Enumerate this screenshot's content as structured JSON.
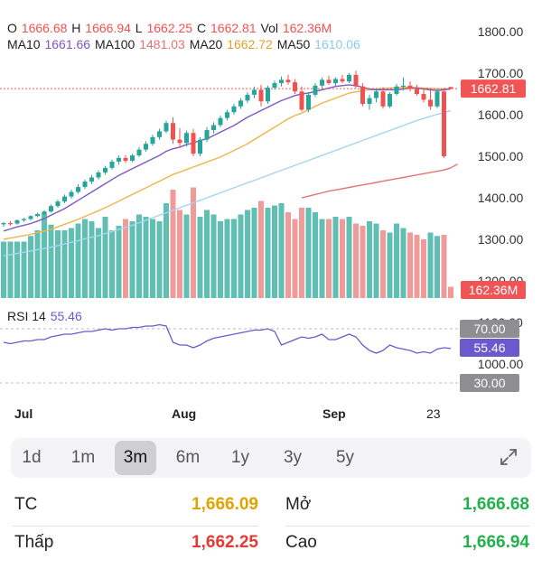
{
  "ohlc": {
    "o_label": "O",
    "o_value": "1666.68",
    "h_label": "H",
    "h_value": "1666.94",
    "l_label": "L",
    "l_value": "1662.25",
    "c_label": "C",
    "c_value": "1662.81",
    "vol_label": "Vol",
    "vol_value": "162.36M"
  },
  "ma": {
    "ma10_label": "MA10",
    "ma10_value": "1661.66",
    "ma100_label": "MA100",
    "ma100_value": "1481.03",
    "ma20_label": "MA20",
    "ma20_value": "1662.72",
    "ma50_label": "MA50",
    "ma50_value": "1610.06"
  },
  "price_axis": [
    "1800.00",
    "1700.00",
    "1600.00",
    "1500.00",
    "1400.00",
    "1300.00",
    "1200.00",
    "1100.00",
    "1000.00"
  ],
  "last_price_badge": "1662.81",
  "volume_badge": "162.36M",
  "rsi": {
    "label": "RSI 14",
    "value": "55.46",
    "upper": "70.00",
    "lower": "30.00"
  },
  "months": [
    "Jul",
    "Aug",
    "Sep",
    "23"
  ],
  "ranges": [
    "1d",
    "1m",
    "3m",
    "6m",
    "1y",
    "3y",
    "5y"
  ],
  "active_range": "3m",
  "stats": {
    "tc_label": "TC",
    "tc_value": "1,666.09",
    "open_label": "Mở",
    "open_value": "1,666.68",
    "low_label": "Thấp",
    "low_value": "1,662.25",
    "high_label": "Cao",
    "high_value": "1,666.94"
  },
  "colors": {
    "up": "#26a69a",
    "down": "#ef5350",
    "volume_up": "#5fbfb2",
    "volume_down": "#f19a9a",
    "ma10": "#7e57c2",
    "ma20": "#f0b44a",
    "ma50": "#a6d5ef",
    "ma100": "#e57373",
    "rsi_line": "#6a5acd",
    "badge_red": "#f05454",
    "badge_grey": "#8e8e93",
    "tc": "#e0a400",
    "open": "#22b14c",
    "low": "#e53935",
    "high": "#22b14c"
  },
  "chart_data": {
    "type": "candlestick",
    "ylim": [
      1000,
      1830
    ],
    "candles": [
      {
        "o": 1336,
        "h": 1342,
        "l": 1330,
        "c": 1339
      },
      {
        "o": 1339,
        "h": 1344,
        "l": 1333,
        "c": 1338
      },
      {
        "o": 1338,
        "h": 1348,
        "l": 1335,
        "c": 1346
      },
      {
        "o": 1346,
        "h": 1352,
        "l": 1342,
        "c": 1349
      },
      {
        "o": 1349,
        "h": 1358,
        "l": 1346,
        "c": 1356
      },
      {
        "o": 1356,
        "h": 1364,
        "l": 1353,
        "c": 1361
      },
      {
        "o": 1361,
        "h": 1370,
        "l": 1356,
        "c": 1367
      },
      {
        "o": 1367,
        "h": 1384,
        "l": 1364,
        "c": 1380
      },
      {
        "o": 1380,
        "h": 1396,
        "l": 1376,
        "c": 1391
      },
      {
        "o": 1391,
        "h": 1408,
        "l": 1387,
        "c": 1403
      },
      {
        "o": 1403,
        "h": 1420,
        "l": 1398,
        "c": 1414
      },
      {
        "o": 1414,
        "h": 1432,
        "l": 1410,
        "c": 1426
      },
      {
        "o": 1426,
        "h": 1444,
        "l": 1421,
        "c": 1439
      },
      {
        "o": 1439,
        "h": 1455,
        "l": 1433,
        "c": 1449
      },
      {
        "o": 1449,
        "h": 1466,
        "l": 1444,
        "c": 1461
      },
      {
        "o": 1461,
        "h": 1477,
        "l": 1456,
        "c": 1472
      },
      {
        "o": 1472,
        "h": 1492,
        "l": 1468,
        "c": 1487
      },
      {
        "o": 1487,
        "h": 1502,
        "l": 1480,
        "c": 1496
      },
      {
        "o": 1496,
        "h": 1503,
        "l": 1484,
        "c": 1489
      },
      {
        "o": 1489,
        "h": 1506,
        "l": 1486,
        "c": 1502
      },
      {
        "o": 1502,
        "h": 1522,
        "l": 1498,
        "c": 1516
      },
      {
        "o": 1516,
        "h": 1536,
        "l": 1511,
        "c": 1530
      },
      {
        "o": 1530,
        "h": 1552,
        "l": 1525,
        "c": 1546
      },
      {
        "o": 1546,
        "h": 1566,
        "l": 1540,
        "c": 1560
      },
      {
        "o": 1560,
        "h": 1586,
        "l": 1556,
        "c": 1580
      },
      {
        "o": 1580,
        "h": 1594,
        "l": 1530,
        "c": 1540
      },
      {
        "o": 1540,
        "h": 1568,
        "l": 1520,
        "c": 1532
      },
      {
        "o": 1532,
        "h": 1562,
        "l": 1524,
        "c": 1556
      },
      {
        "o": 1556,
        "h": 1566,
        "l": 1500,
        "c": 1506
      },
      {
        "o": 1506,
        "h": 1546,
        "l": 1500,
        "c": 1540
      },
      {
        "o": 1540,
        "h": 1570,
        "l": 1534,
        "c": 1563
      },
      {
        "o": 1563,
        "h": 1582,
        "l": 1555,
        "c": 1575
      },
      {
        "o": 1575,
        "h": 1598,
        "l": 1570,
        "c": 1592
      },
      {
        "o": 1592,
        "h": 1612,
        "l": 1586,
        "c": 1606
      },
      {
        "o": 1606,
        "h": 1626,
        "l": 1600,
        "c": 1620
      },
      {
        "o": 1620,
        "h": 1640,
        "l": 1614,
        "c": 1634
      },
      {
        "o": 1634,
        "h": 1654,
        "l": 1628,
        "c": 1648
      },
      {
        "o": 1648,
        "h": 1668,
        "l": 1640,
        "c": 1660
      },
      {
        "o": 1660,
        "h": 1672,
        "l": 1620,
        "c": 1632
      },
      {
        "o": 1632,
        "h": 1670,
        "l": 1626,
        "c": 1665
      },
      {
        "o": 1665,
        "h": 1682,
        "l": 1660,
        "c": 1676
      },
      {
        "o": 1676,
        "h": 1692,
        "l": 1668,
        "c": 1684
      },
      {
        "o": 1684,
        "h": 1696,
        "l": 1672,
        "c": 1678
      },
      {
        "o": 1678,
        "h": 1686,
        "l": 1650,
        "c": 1656
      },
      {
        "o": 1656,
        "h": 1668,
        "l": 1608,
        "c": 1612
      },
      {
        "o": 1612,
        "h": 1654,
        "l": 1606,
        "c": 1648
      },
      {
        "o": 1648,
        "h": 1676,
        "l": 1642,
        "c": 1670
      },
      {
        "o": 1670,
        "h": 1690,
        "l": 1664,
        "c": 1684
      },
      {
        "o": 1684,
        "h": 1694,
        "l": 1672,
        "c": 1676
      },
      {
        "o": 1676,
        "h": 1690,
        "l": 1668,
        "c": 1686
      },
      {
        "o": 1686,
        "h": 1696,
        "l": 1676,
        "c": 1680
      },
      {
        "o": 1680,
        "h": 1700,
        "l": 1676,
        "c": 1696
      },
      {
        "o": 1696,
        "h": 1706,
        "l": 1664,
        "c": 1668
      },
      {
        "o": 1668,
        "h": 1676,
        "l": 1620,
        "c": 1626
      },
      {
        "o": 1626,
        "h": 1648,
        "l": 1612,
        "c": 1640
      },
      {
        "o": 1640,
        "h": 1662,
        "l": 1630,
        "c": 1656
      },
      {
        "o": 1656,
        "h": 1666,
        "l": 1614,
        "c": 1620
      },
      {
        "o": 1620,
        "h": 1654,
        "l": 1616,
        "c": 1650
      },
      {
        "o": 1650,
        "h": 1674,
        "l": 1646,
        "c": 1668
      },
      {
        "o": 1668,
        "h": 1690,
        "l": 1658,
        "c": 1670
      },
      {
        "o": 1670,
        "h": 1680,
        "l": 1656,
        "c": 1662
      },
      {
        "o": 1662,
        "h": 1672,
        "l": 1646,
        "c": 1650
      },
      {
        "o": 1650,
        "h": 1664,
        "l": 1630,
        "c": 1636
      },
      {
        "o": 1636,
        "h": 1660,
        "l": 1612,
        "c": 1620
      },
      {
        "o": 1620,
        "h": 1662,
        "l": 1616,
        "c": 1656
      },
      {
        "o": 1656,
        "h": 1664,
        "l": 1496,
        "c": 1500
      },
      {
        "o": 1666.68,
        "h": 1666.94,
        "l": 1662.25,
        "c": 1662.81
      }
    ],
    "volume": [
      50,
      50,
      50,
      50,
      55,
      60,
      75,
      65,
      60,
      60,
      62,
      66,
      70,
      68,
      62,
      72,
      60,
      64,
      70,
      68,
      74,
      72,
      70,
      68,
      84,
      96,
      78,
      74,
      98,
      72,
      78,
      74,
      68,
      70,
      70,
      74,
      78,
      80,
      86,
      80,
      82,
      84,
      76,
      70,
      80,
      80,
      76,
      70,
      70,
      72,
      70,
      72,
      66,
      64,
      68,
      66,
      60,
      58,
      66,
      62,
      58,
      56,
      52,
      58,
      55,
      56,
      10
    ],
    "volume_up_flags": [
      1,
      1,
      1,
      1,
      1,
      1,
      1,
      1,
      1,
      1,
      1,
      1,
      1,
      1,
      1,
      1,
      1,
      1,
      0,
      1,
      1,
      1,
      1,
      1,
      1,
      0,
      0,
      1,
      0,
      1,
      1,
      1,
      1,
      1,
      1,
      1,
      1,
      1,
      0,
      1,
      1,
      1,
      0,
      0,
      0,
      1,
      1,
      1,
      0,
      1,
      0,
      1,
      0,
      0,
      1,
      1,
      0,
      1,
      1,
      1,
      0,
      0,
      0,
      1,
      1,
      0,
      0
    ],
    "rsi_values": [
      60,
      59,
      60,
      61,
      61,
      62,
      62,
      64,
      65,
      66,
      66,
      67,
      68,
      68,
      69,
      70,
      69,
      70,
      70,
      71,
      71,
      72,
      72,
      73,
      72,
      60,
      58,
      58,
      56,
      58,
      61,
      63,
      64,
      65,
      66,
      67,
      68,
      69,
      69,
      70,
      68,
      58,
      60,
      62,
      64,
      63,
      64,
      66,
      62,
      62,
      64,
      66,
      64,
      58,
      54,
      52,
      54,
      58,
      56,
      55,
      54,
      52,
      53,
      52,
      55,
      56,
      55.46
    ],
    "ma10": [
      1320,
      1325,
      1330,
      1334,
      1338,
      1344,
      1350,
      1358,
      1366,
      1374,
      1384,
      1394,
      1404,
      1414,
      1424,
      1434,
      1444,
      1454,
      1462,
      1470,
      1478,
      1486,
      1494,
      1502,
      1512,
      1518,
      1522,
      1528,
      1532,
      1538,
      1542,
      1550,
      1558,
      1566,
      1574,
      1584,
      1594,
      1602,
      1610,
      1618,
      1626,
      1634,
      1640,
      1646,
      1650,
      1652,
      1656,
      1660,
      1664,
      1668,
      1670,
      1672,
      1670,
      1666,
      1662,
      1660,
      1660,
      1660,
      1660,
      1662,
      1664,
      1664,
      1662,
      1660,
      1658,
      1660,
      1661.66
    ],
    "ma20": [
      1300,
      1303,
      1306,
      1309,
      1312,
      1316,
      1320,
      1324,
      1330,
      1336,
      1342,
      1348,
      1355,
      1362,
      1369,
      1376,
      1384,
      1392,
      1400,
      1408,
      1416,
      1424,
      1432,
      1440,
      1448,
      1456,
      1462,
      1468,
      1474,
      1480,
      1486,
      1492,
      1498,
      1506,
      1514,
      1522,
      1530,
      1540,
      1550,
      1560,
      1570,
      1580,
      1590,
      1598,
      1604,
      1612,
      1620,
      1628,
      1634,
      1640,
      1646,
      1652,
      1655,
      1658,
      1660,
      1662,
      1663,
      1664,
      1665,
      1666,
      1666,
      1665,
      1664,
      1663,
      1662,
      1662,
      1662.72
    ],
    "ma50": [
      1260,
      1263,
      1266,
      1269,
      1272,
      1275,
      1278,
      1281,
      1285,
      1289,
      1293,
      1297,
      1301,
      1305,
      1309,
      1314,
      1319,
      1324,
      1329,
      1334,
      1340,
      1346,
      1352,
      1358,
      1364,
      1370,
      1376,
      1382,
      1388,
      1394,
      1400,
      1406,
      1412,
      1418,
      1424,
      1430,
      1436,
      1442,
      1448,
      1454,
      1460,
      1466,
      1472,
      1478,
      1484,
      1490,
      1496,
      1502,
      1508,
      1514,
      1520,
      1526,
      1532,
      1538,
      1544,
      1550,
      1556,
      1562,
      1568,
      1574,
      1580,
      1586,
      1591,
      1596,
      1601,
      1605,
      1610.06
    ],
    "ma100_start_index": 44,
    "ma100": [
      1400,
      1404,
      1408,
      1412,
      1416,
      1419,
      1422,
      1425,
      1428,
      1431,
      1434,
      1437,
      1440,
      1443,
      1446,
      1449,
      1452,
      1455,
      1458,
      1461,
      1464,
      1467,
      1472,
      1481.03
    ]
  }
}
